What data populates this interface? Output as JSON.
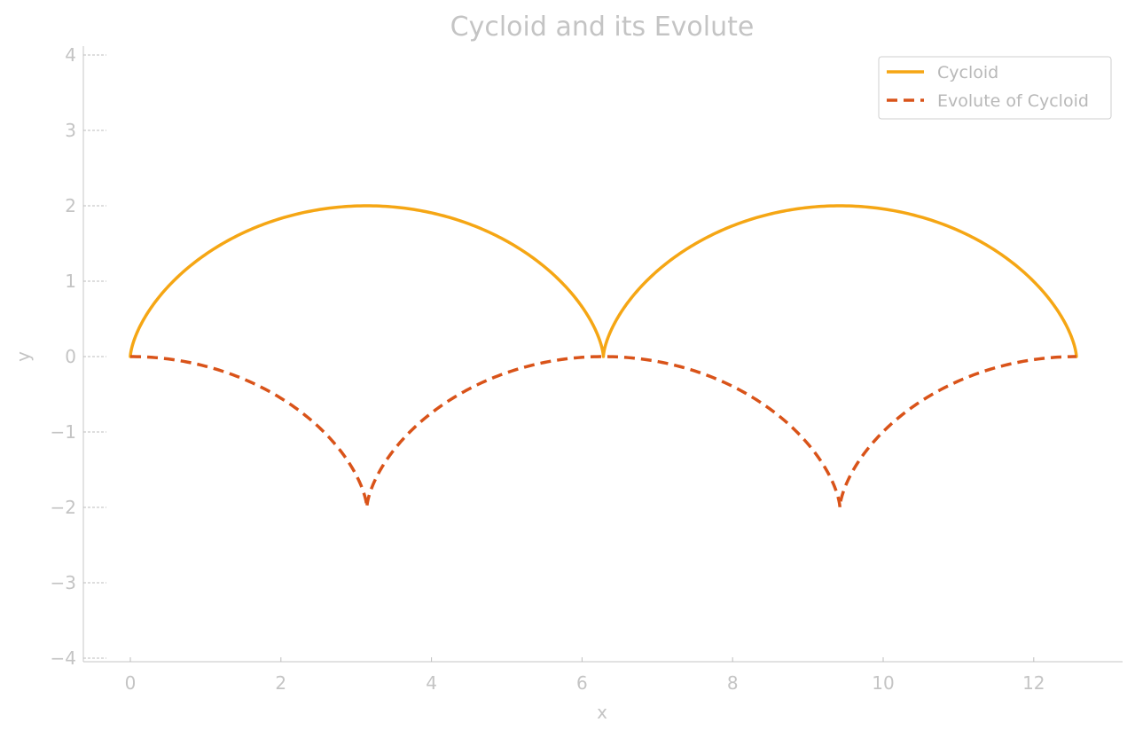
{
  "chart_data": {
    "type": "line",
    "title": "Cycloid and its Evolute",
    "xlabel": "x",
    "ylabel": "y",
    "xlim": [
      -0.6,
      13.1
    ],
    "ylim": [
      -4.1,
      4.1
    ],
    "x_ticks": [
      0,
      2,
      4,
      6,
      8,
      10,
      12
    ],
    "y_ticks": [
      -4,
      -3,
      -2,
      -1,
      0,
      1,
      2,
      3,
      4
    ],
    "x_tick_labels": [
      "0",
      "2",
      "4",
      "6",
      "8",
      "10",
      "12"
    ],
    "y_tick_labels": [
      "−4",
      "−3",
      "−2",
      "−1",
      "0",
      "1",
      "2",
      "3",
      "4"
    ],
    "grid": false,
    "legend_position": "top-right",
    "parameter_range": [
      0,
      12.566
    ],
    "series": [
      {
        "name": "Cycloid",
        "color": "#f5a614",
        "style": "solid",
        "equation": "x = t - sin(t), y = 1 - cos(t)"
      },
      {
        "name": "Evolute of Cycloid",
        "color": "#d95319",
        "style": "dashed",
        "equation": "x = t + sin(t), y = cos(t) - 1"
      }
    ]
  }
}
